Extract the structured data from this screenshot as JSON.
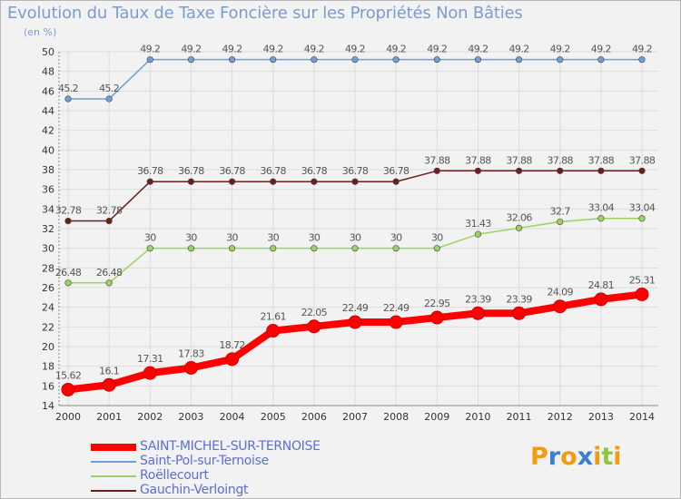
{
  "header": {
    "title": "Evolution du Taux de Taxe Foncière sur les Propriétés Non Bâties",
    "unit": "(en %)"
  },
  "logo": {
    "letters": [
      "P",
      "r",
      "o",
      "x",
      "i",
      "t",
      "i"
    ],
    "colors": [
      "#f39c12",
      "#3a7fd5",
      "#f39c12",
      "#3a7fd5",
      "#f39c12",
      "#8dc63f",
      "#f39c12"
    ]
  },
  "chart_data": {
    "type": "line",
    "title": "Evolution du Taux de Taxe Foncière sur les Propriétés Non Bâties",
    "ylabel": "(en %)",
    "xlabel": "",
    "ylim": [
      14,
      50
    ],
    "yticks": [
      14,
      16,
      18,
      20,
      22,
      24,
      26,
      28,
      30,
      32,
      34,
      36,
      38,
      40,
      42,
      44,
      46,
      48,
      50
    ],
    "grid": true,
    "legend_position": "bottom-left",
    "x": [
      "2000",
      "2001",
      "2002",
      "2003",
      "2004",
      "2005",
      "2006",
      "2007",
      "2008",
      "2009",
      "2010",
      "2011",
      "2012",
      "2013",
      "2014"
    ],
    "series": [
      {
        "name": "SAINT-MICHEL-SUR-TERNOISE",
        "color": "#ff0000",
        "values": [
          15.62,
          16.1,
          17.31,
          17.83,
          18.72,
          21.61,
          22.05,
          22.49,
          22.49,
          22.95,
          23.39,
          23.39,
          24.09,
          24.81,
          25.31
        ],
        "labels": [
          "15.62",
          "16.1",
          "17.31",
          "17.83",
          "18.72",
          "21.61",
          "22.05",
          "22.49",
          "22.49",
          "22.95",
          "23.39",
          "23.39",
          "24.09",
          "24.81",
          "25.31"
        ]
      },
      {
        "name": "Saint-Pol-sur-Ternoise",
        "color": "#6f9fd8",
        "values": [
          45.2,
          45.2,
          49.2,
          49.2,
          49.2,
          49.2,
          49.2,
          49.2,
          49.2,
          49.2,
          49.2,
          49.2,
          49.2,
          49.2,
          49.2
        ],
        "labels": [
          "45.2",
          "45.2",
          "49.2",
          "49.2",
          "49.2",
          "49.2",
          "49.2",
          "49.2",
          "49.2",
          "49.2",
          "49.2",
          "49.2",
          "49.2",
          "49.2",
          "49.2"
        ]
      },
      {
        "name": "Roëllecourt",
        "color": "#9ad35f",
        "values": [
          26.48,
          26.48,
          30,
          30,
          30,
          30,
          30,
          30,
          30,
          30,
          31.43,
          32.06,
          32.7,
          33.04,
          33.04
        ],
        "labels": [
          "26.48",
          "26.48",
          "30",
          "30",
          "30",
          "30",
          "30",
          "30",
          "30",
          "30",
          "31.43",
          "32.06",
          "32.7",
          "33.04",
          "33.04"
        ]
      },
      {
        "name": "Gauchin-Verloingt",
        "color": "#6b1f1f",
        "values": [
          32.78,
          32.78,
          36.78,
          36.78,
          36.78,
          36.78,
          36.78,
          36.78,
          36.78,
          37.88,
          37.88,
          37.88,
          37.88,
          37.88,
          37.88
        ],
        "labels": [
          "32.78",
          "32.78",
          "36.78",
          "36.78",
          "36.78",
          "36.78",
          "36.78",
          "36.78",
          "36.78",
          "37.88",
          "37.88",
          "37.88",
          "37.88",
          "37.88",
          "37.88"
        ]
      }
    ]
  }
}
